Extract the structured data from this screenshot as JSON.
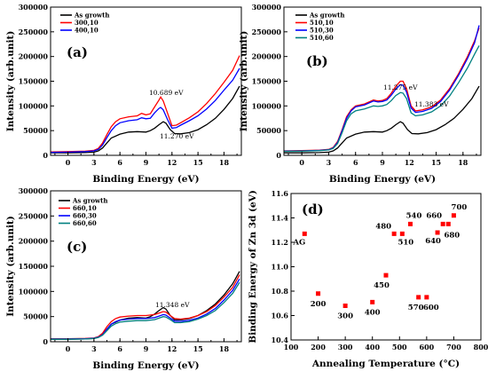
{
  "chart_data": [
    {
      "id": "a",
      "type": "line",
      "panel_label": "(a)",
      "xlabel": "Binding Energy (eV)",
      "ylabel": "Intensity (arb.unit)",
      "xlim": [
        -2,
        20
      ],
      "ylim": [
        0,
        300000
      ],
      "xticks": [
        "0",
        "3",
        "6",
        "9",
        "12",
        "15",
        "18"
      ],
      "yticks": [
        "0",
        "50000",
        "100000",
        "150000",
        "200000",
        "250000",
        "300000"
      ],
      "legend": "top-left",
      "series": [
        {
          "name": "As growth",
          "color": "#000000",
          "x": [
            -2,
            0,
            2,
            3,
            3.5,
            4,
            4.5,
            5,
            6,
            7,
            8,
            9,
            9.5,
            10,
            10.5,
            11,
            11.3,
            11.8,
            12.3,
            13,
            14,
            15,
            16,
            17,
            18,
            19,
            19.8
          ],
          "y": [
            5000,
            5000,
            5500,
            6500,
            9000,
            15000,
            25000,
            35000,
            43000,
            47000,
            48000,
            47000,
            50000,
            55000,
            62000,
            68000,
            65000,
            52000,
            44000,
            43500,
            46000,
            52000,
            62000,
            75000,
            93000,
            115000,
            140000
          ]
        },
        {
          "name": "300,10",
          "color": "#ff0000",
          "x": [
            -2,
            0,
            2,
            3,
            3.5,
            4,
            4.5,
            5,
            5.5,
            6,
            7,
            8,
            8.5,
            9,
            9.5,
            10,
            10.5,
            10.7,
            11,
            11.5,
            12,
            12.5,
            13,
            14,
            15,
            16,
            17,
            18,
            19,
            19.8
          ],
          "y": [
            7000,
            7500,
            8500,
            10000,
            14000,
            25000,
            42000,
            58000,
            68000,
            74000,
            78000,
            80000,
            85000,
            82000,
            84000,
            98000,
            112000,
            118000,
            110000,
            85000,
            60000,
            61000,
            66000,
            76000,
            88000,
            105000,
            125000,
            148000,
            172000,
            202000
          ]
        },
        {
          "name": "400,10",
          "color": "#0000ff",
          "x": [
            -2,
            0,
            2,
            3,
            3.5,
            4,
            4.5,
            5,
            5.5,
            6,
            7,
            8,
            8.5,
            9,
            9.5,
            10,
            10.5,
            10.7,
            11,
            11.5,
            12,
            12.5,
            13,
            14,
            15,
            16,
            17,
            18,
            19,
            19.8
          ],
          "y": [
            6000,
            6500,
            7500,
            9000,
            12000,
            21000,
            36000,
            50000,
            60000,
            66000,
            70000,
            72000,
            76000,
            74000,
            75000,
            86000,
            95000,
            97000,
            92000,
            72000,
            55000,
            56000,
            61000,
            70000,
            80000,
            94000,
            111000,
            132000,
            152000,
            176000
          ]
        }
      ],
      "annotations": [
        "10.689 eV",
        "11.270 eV"
      ]
    },
    {
      "id": "b",
      "type": "line",
      "panel_label": "(b)",
      "xlabel": "Binding Energy (eV)",
      "ylabel": "Intensity (arb.unit)",
      "xlim": [
        -2,
        20
      ],
      "ylim": [
        0,
        300000
      ],
      "xticks": [
        "0",
        "3",
        "6",
        "9",
        "12",
        "15",
        "18"
      ],
      "yticks": [
        "0",
        "50000",
        "100000",
        "150000",
        "200000",
        "250000",
        "300000"
      ],
      "legend": "top-left",
      "series": [
        {
          "name": "As growth",
          "color": "#000000",
          "x": [
            -2,
            0,
            2,
            3,
            3.5,
            4,
            4.5,
            5,
            6,
            7,
            8,
            9,
            9.5,
            10,
            10.5,
            11,
            11.3,
            11.8,
            12.3,
            13,
            14,
            15,
            16,
            17,
            18,
            19,
            19.8
          ],
          "y": [
            5000,
            5000,
            5500,
            6500,
            9000,
            15000,
            25000,
            35000,
            43000,
            47000,
            48000,
            47000,
            50000,
            55000,
            62000,
            68000,
            65000,
            52000,
            44000,
            43500,
            46000,
            52000,
            62000,
            75000,
            93000,
            115000,
            140000
          ]
        },
        {
          "name": "510,10",
          "color": "#ff0000",
          "x": [
            -2,
            0,
            2,
            3,
            3.5,
            4,
            4.5,
            5,
            5.5,
            6,
            7,
            8,
            8.5,
            9,
            9.5,
            10,
            10.5,
            11,
            11.3,
            11.7,
            12.2,
            12.7,
            13.5,
            14.5,
            15.5,
            16.5,
            17.5,
            18.5,
            19.3,
            19.8
          ],
          "y": [
            9000,
            9500,
            10500,
            12000,
            16000,
            28000,
            52000,
            78000,
            92000,
            100000,
            104000,
            112000,
            110000,
            111000,
            115000,
            126000,
            140000,
            150000,
            150000,
            135000,
            100000,
            90000,
            92000,
            98000,
            112000,
            135000,
            165000,
            200000,
            232000,
            258000
          ]
        },
        {
          "name": "510,30",
          "color": "#0000ff",
          "x": [
            -2,
            0,
            2,
            3,
            3.5,
            4,
            4.5,
            5,
            5.5,
            6,
            7,
            8,
            8.5,
            9,
            9.5,
            10,
            10.5,
            11,
            11.3,
            11.7,
            12.2,
            12.7,
            13.5,
            14.5,
            15.5,
            16.5,
            17.5,
            18.5,
            19.3,
            19.8
          ],
          "y": [
            8500,
            9000,
            10000,
            11500,
            15000,
            26000,
            50000,
            75000,
            90000,
            98000,
            102000,
            110000,
            108000,
            109000,
            112000,
            122000,
            134000,
            143000,
            142000,
            128000,
            96000,
            87000,
            89000,
            95000,
            109000,
            132000,
            162000,
            196000,
            228000,
            263000
          ]
        },
        {
          "name": "510,60",
          "color": "#008080",
          "x": [
            -2,
            0,
            2,
            3,
            3.5,
            4,
            4.5,
            5,
            5.5,
            6,
            7,
            8,
            8.5,
            9,
            9.5,
            10,
            10.5,
            11,
            11.3,
            11.7,
            12.2,
            12.7,
            13.5,
            14.5,
            15.5,
            16.5,
            17.5,
            18.5,
            19.3,
            19.8
          ],
          "y": [
            8000,
            8500,
            9500,
            11000,
            14000,
            24000,
            46000,
            70000,
            84000,
            90000,
            94000,
            100000,
            99000,
            100000,
            103000,
            111000,
            121000,
            127000,
            126000,
            115000,
            86000,
            80000,
            82000,
            88000,
            100000,
            120000,
            147000,
            177000,
            205000,
            222000
          ]
        }
      ],
      "annotations": [
        "11.275 eV",
        "11.383 eV"
      ]
    },
    {
      "id": "c",
      "type": "line",
      "panel_label": "(c)",
      "xlabel": "Binding Energy (eV)",
      "ylabel": "Intensity (arb.unit)",
      "xlim": [
        -2,
        20
      ],
      "ylim": [
        0,
        300000
      ],
      "xticks": [
        "0",
        "3",
        "6",
        "9",
        "12",
        "15",
        "18"
      ],
      "yticks": [
        "0",
        "50000",
        "100000",
        "150000",
        "200000",
        "250000",
        "300000"
      ],
      "legend": "top-left",
      "series": [
        {
          "name": "As growth",
          "color": "#000000",
          "x": [
            -2,
            0,
            2,
            3,
            3.5,
            4,
            4.5,
            5,
            6,
            7,
            8,
            9,
            9.5,
            10,
            10.5,
            11,
            11.3,
            11.8,
            12.3,
            13,
            14,
            15,
            16,
            17,
            18,
            19,
            19.8
          ],
          "y": [
            5000,
            5000,
            5500,
            6500,
            9000,
            15000,
            25000,
            35000,
            43000,
            47000,
            48000,
            47000,
            50000,
            55000,
            62000,
            68000,
            65000,
            52000,
            44000,
            43500,
            46000,
            52000,
            62000,
            75000,
            93000,
            115000,
            140000
          ]
        },
        {
          "name": "660,10",
          "color": "#ff0000",
          "x": [
            -2,
            0,
            2,
            3,
            3.5,
            4,
            4.5,
            5,
            5.5,
            6,
            7,
            8,
            9,
            10,
            10.5,
            11,
            11.3,
            11.8,
            12.3,
            13,
            14,
            15,
            16,
            17,
            18,
            19,
            19.8
          ],
          "y": [
            6000,
            6000,
            6500,
            7500,
            10000,
            17000,
            30000,
            40000,
            46000,
            49000,
            51000,
            52000,
            52000,
            54000,
            57000,
            60000,
            59000,
            52000,
            46000,
            45000,
            47000,
            52000,
            60000,
            72000,
            89000,
            108000,
            133000
          ]
        },
        {
          "name": "660,30",
          "color": "#0000ff",
          "x": [
            -2,
            0,
            2,
            3,
            3.5,
            4,
            4.5,
            5,
            5.5,
            6,
            7,
            8,
            9,
            10,
            10.5,
            11,
            11.3,
            11.8,
            12.3,
            13,
            14,
            15,
            16,
            17,
            18,
            19,
            19.8
          ],
          "y": [
            5500,
            5500,
            6000,
            7000,
            9000,
            14000,
            25000,
            35000,
            40000,
            43000,
            45000,
            46000,
            46000,
            48000,
            51000,
            54000,
            53000,
            47000,
            41000,
            40500,
            42500,
            47000,
            55000,
            66000,
            83000,
            102000,
            125000
          ]
        },
        {
          "name": "660,60",
          "color": "#008080",
          "x": [
            -2,
            0,
            2,
            3,
            3.5,
            4,
            4.5,
            5,
            5.5,
            6,
            7,
            8,
            9,
            10,
            10.5,
            11,
            11.3,
            11.8,
            12.3,
            13,
            14,
            15,
            16,
            17,
            18,
            19,
            19.8
          ],
          "y": [
            5000,
            5000,
            5500,
            6500,
            8500,
            13000,
            22000,
            31000,
            36000,
            39000,
            41000,
            42000,
            42000,
            44000,
            47000,
            50000,
            49000,
            44000,
            38000,
            38000,
            40000,
            45000,
            52000,
            62000,
            78000,
            96000,
            118000
          ]
        }
      ],
      "annotations": [
        "11.348 eV"
      ]
    },
    {
      "id": "d",
      "type": "scatter",
      "panel_label": "(d)",
      "xlabel": "Annealing Temperature (°C)",
      "ylabel": "Binding Energy of Zn 3d (eV)",
      "xlim": [
        100,
        800
      ],
      "ylim": [
        10.4,
        11.6
      ],
      "xticks": [
        "100",
        "200",
        "300",
        "400",
        "500",
        "600",
        "700",
        "800"
      ],
      "yticks": [
        "10.4",
        "10.6",
        "10.8",
        "11.0",
        "11.2",
        "11.4",
        "11.6"
      ],
      "grid": false,
      "color": "#ff0000",
      "points": [
        {
          "label": "AG",
          "x": 150,
          "y": 11.27
        },
        {
          "label": "200",
          "x": 200,
          "y": 10.78
        },
        {
          "label": "300",
          "x": 300,
          "y": 10.68
        },
        {
          "label": "400",
          "x": 400,
          "y": 10.71
        },
        {
          "label": "450",
          "x": 450,
          "y": 10.93
        },
        {
          "label": "480",
          "x": 480,
          "y": 11.27
        },
        {
          "label": "510",
          "x": 510,
          "y": 11.27
        },
        {
          "label": "540",
          "x": 540,
          "y": 11.35
        },
        {
          "label": "570",
          "x": 570,
          "y": 10.75
        },
        {
          "label": "600",
          "x": 600,
          "y": 10.75
        },
        {
          "label": "640",
          "x": 640,
          "y": 11.28
        },
        {
          "label": "660",
          "x": 660,
          "y": 11.35
        },
        {
          "label": "680",
          "x": 680,
          "y": 11.35
        },
        {
          "label": "700",
          "x": 700,
          "y": 11.42
        }
      ]
    }
  ]
}
